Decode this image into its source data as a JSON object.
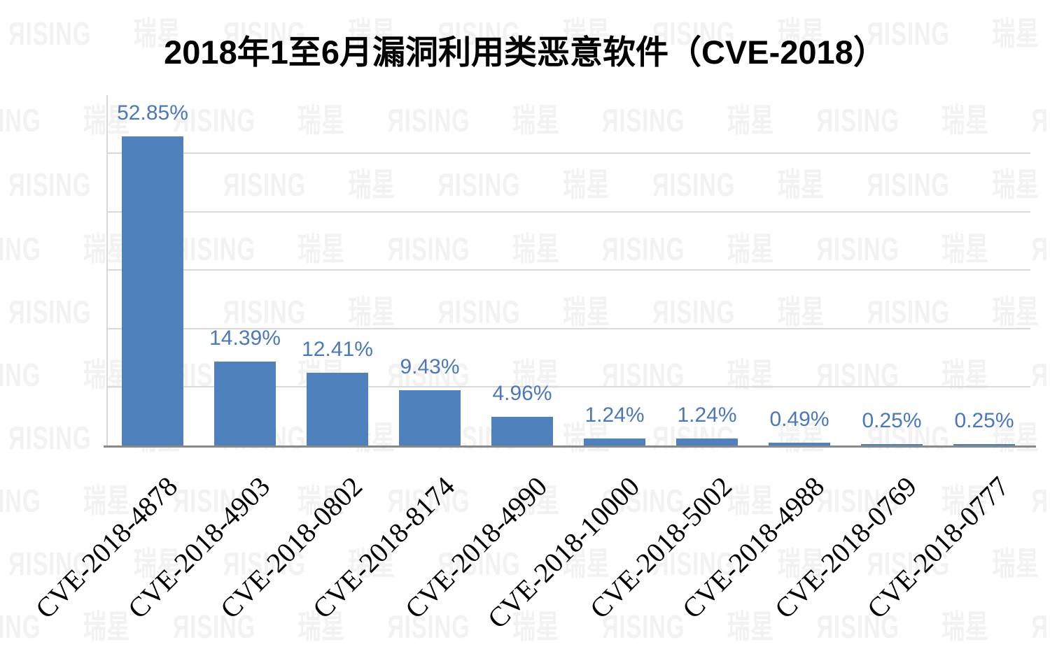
{
  "watermark": {
    "text": "ЯISING 瑞星",
    "color": "#f2f2f2"
  },
  "chart_data": {
    "type": "bar",
    "title": "2018年1至6月漏洞利用类恶意软件（CVE-2018）",
    "categories": [
      "CVE-2018-4878",
      "CVE-2018-4903",
      "CVE-2018-0802",
      "CVE-2018-8174",
      "CVE-2018-4990",
      "CVE-2018-10000",
      "CVE-2018-5002",
      "CVE-2018-4988",
      "CVE-2018-0769",
      "CVE-2018-0777"
    ],
    "values": [
      52.85,
      14.39,
      12.41,
      9.43,
      4.96,
      1.24,
      1.24,
      0.49,
      0.25,
      0.25
    ],
    "data_labels": [
      "52.85%",
      "14.39%",
      "12.41%",
      "9.43%",
      "4.96%",
      "1.24%",
      "1.24%",
      "0.49%",
      "0.25%",
      "0.25%"
    ],
    "xlabel": "",
    "ylabel": "",
    "ylim": [
      0,
      60
    ],
    "gridline_step": 10,
    "grid": true,
    "legend_position": "none",
    "bar_color": "#4f81bd",
    "data_label_color": "#4a78ba",
    "gridline_color": "#d9d9d9",
    "axis_line_color": "#898989",
    "y_axis_line_color": "#d9d9d9",
    "title_color": "#000000",
    "category_label_color": "#000000"
  }
}
